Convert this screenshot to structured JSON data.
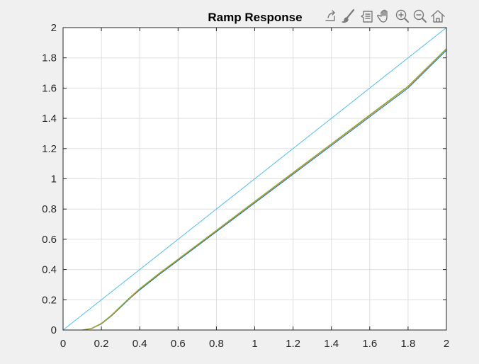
{
  "figure": {
    "background": "#f0f0f0"
  },
  "toolbar": {
    "icons": [
      "export-icon",
      "brush-icon",
      "data-tips-icon",
      "pan-icon",
      "zoom-in-icon",
      "zoom-out-icon",
      "home-icon"
    ],
    "icon_color": "#7a7a7a"
  },
  "chart_data": {
    "type": "line",
    "title": "Ramp Response",
    "xlabel": "",
    "ylabel": "",
    "xlim": [
      0,
      2
    ],
    "ylim": [
      0,
      2
    ],
    "xticks": [
      0,
      0.2,
      0.4,
      0.6,
      0.8,
      1,
      1.2,
      1.4,
      1.6,
      1.8,
      2
    ],
    "yticks": [
      0,
      0.2,
      0.4,
      0.6,
      0.8,
      1,
      1.2,
      1.4,
      1.6,
      1.8,
      2
    ],
    "xtick_labels": [
      "0",
      "0.2",
      "0.4",
      "0.6",
      "0.8",
      "1",
      "1.2",
      "1.4",
      "1.6",
      "1.8",
      "2"
    ],
    "ytick_labels": [
      "0",
      "0.2",
      "0.4",
      "0.6",
      "0.8",
      "1",
      "1.2",
      "1.4",
      "1.6",
      "1.8",
      "2"
    ],
    "grid": true,
    "series": [
      {
        "color": "#4dbeee",
        "x": [
          0,
          2
        ],
        "y": [
          0,
          2
        ]
      },
      {
        "color": "#0072bd",
        "x": [
          0,
          0.1,
          0.15,
          0.2,
          0.25,
          0.3,
          0.35,
          0.4,
          0.5,
          0.6,
          0.8,
          1.0,
          1.2,
          1.4,
          1.6,
          1.8,
          2.0
        ],
        "y": [
          0,
          0,
          0.01,
          0.04,
          0.09,
          0.15,
          0.21,
          0.265,
          0.365,
          0.46,
          0.65,
          0.84,
          1.03,
          1.22,
          1.41,
          1.6,
          1.85
        ]
      },
      {
        "color": "#d95319",
        "x": [
          0,
          0.1,
          0.15,
          0.2,
          0.25,
          0.3,
          0.35,
          0.4,
          0.5,
          0.6,
          0.8,
          1.0,
          1.2,
          1.4,
          1.6,
          1.8,
          2.0
        ],
        "y": [
          0,
          0,
          0.01,
          0.042,
          0.093,
          0.153,
          0.213,
          0.27,
          0.37,
          0.465,
          0.656,
          0.847,
          1.037,
          1.228,
          1.418,
          1.609,
          1.858
        ]
      },
      {
        "color": "#edb120",
        "x": [
          0,
          0.1,
          0.15,
          0.2,
          0.25,
          0.3,
          0.35,
          0.4,
          0.5,
          0.6,
          0.8,
          1.0,
          1.2,
          1.4,
          1.6,
          1.8,
          2.0
        ],
        "y": [
          0,
          0,
          0.011,
          0.043,
          0.094,
          0.155,
          0.215,
          0.272,
          0.372,
          0.467,
          0.658,
          0.849,
          1.04,
          1.23,
          1.421,
          1.611,
          1.86
        ]
      },
      {
        "color": "#77ac30",
        "x": [
          0,
          0.1,
          0.15,
          0.2,
          0.25,
          0.3,
          0.35,
          0.4,
          0.5,
          0.6,
          0.8,
          1.0,
          1.2,
          1.4,
          1.6,
          1.8,
          2.0
        ],
        "y": [
          0,
          0,
          0.012,
          0.045,
          0.096,
          0.157,
          0.217,
          0.274,
          0.374,
          0.469,
          0.66,
          0.851,
          1.042,
          1.232,
          1.423,
          1.613,
          1.862
        ]
      }
    ]
  }
}
